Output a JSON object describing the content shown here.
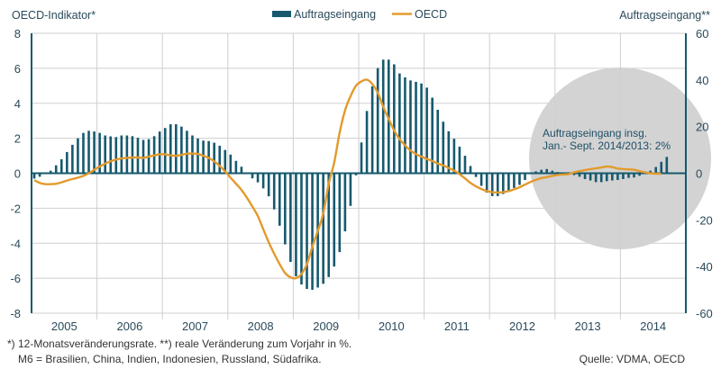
{
  "chart_data": {
    "type": "bar+line",
    "left_axis_title": "OECD-Indikator*",
    "right_axis_title": "Auftragseingang**",
    "left_ylim": [
      -8,
      8
    ],
    "left_ticks": [
      "8",
      "6",
      "4",
      "2",
      "0",
      "-2",
      "-4",
      "-6",
      "-8"
    ],
    "right_ylim": [
      -60,
      60
    ],
    "right_ticks": [
      "60",
      "40",
      "20",
      "0",
      "-20",
      "-40",
      "-60"
    ],
    "x_ticks": [
      "2005",
      "2006",
      "2007",
      "2008",
      "2009",
      "2010",
      "2011",
      "2012",
      "2013",
      "2014"
    ],
    "frequency": "monthly",
    "grid": true,
    "legend_position": "top-center",
    "colors": {
      "bars": "#16596e",
      "line": "#e39a2c",
      "axis": "#16596e",
      "highlight_circle": "#d3d3d3"
    },
    "series": [
      {
        "name": "Auftragseingang",
        "type": "bar",
        "axis": "right",
        "values": [
          -2.3,
          -1.5,
          0.4,
          1.1,
          3.4,
          6.0,
          9.1,
          12.2,
          15.0,
          17.3,
          18.2,
          17.9,
          17.3,
          16.2,
          15.8,
          15.5,
          16.2,
          16.2,
          15.9,
          15.2,
          14.3,
          14.6,
          15.9,
          17.9,
          19.4,
          21.0,
          21.0,
          20.0,
          18.2,
          16.2,
          14.9,
          14.0,
          13.8,
          13.1,
          11.8,
          10.0,
          8.0,
          5.3,
          2.8,
          0.0,
          -2.2,
          -3.9,
          -6.5,
          -9.9,
          -15.5,
          -22.5,
          -30.5,
          -38.0,
          -44.2,
          -47.7,
          -49.6,
          -50.0,
          -49.0,
          -47.4,
          -44.5,
          -40.0,
          -33.8,
          -24.9,
          -14.0,
          -0.9,
          13.2,
          26.7,
          37.3,
          45.1,
          48.7,
          48.7,
          46.7,
          42.8,
          41.1,
          39.8,
          39.2,
          38.5,
          36.7,
          32.4,
          27.2,
          22.1,
          18.0,
          14.8,
          11.4,
          7.5,
          3.1,
          -1.6,
          -5.4,
          -8.3,
          -9.8,
          -9.8,
          -8.9,
          -7.6,
          -6.3,
          -5.0,
          -2.9,
          -0.4,
          0.8,
          1.5,
          1.8,
          1.1,
          0.5,
          0.2,
          -0.5,
          -0.8,
          -1.5,
          -2.5,
          -3.1,
          -3.8,
          -3.8,
          -3.4,
          -3.1,
          -2.9,
          -2.5,
          -2.0,
          -1.8,
          -1.1,
          -0.4,
          1.1,
          2.7,
          4.9,
          7.0
        ]
      },
      {
        "name": "OECD",
        "type": "line",
        "axis": "left",
        "values": [
          -0.4,
          -0.55,
          -0.62,
          -0.62,
          -0.6,
          -0.52,
          -0.42,
          -0.33,
          -0.25,
          -0.15,
          0.0,
          0.2,
          0.38,
          0.55,
          0.68,
          0.78,
          0.85,
          0.88,
          0.9,
          0.9,
          0.88,
          0.95,
          1.02,
          1.08,
          1.08,
          1.02,
          1.0,
          1.05,
          1.12,
          1.12,
          1.1,
          1.0,
          0.88,
          0.68,
          0.42,
          0.1,
          -0.25,
          -0.6,
          -0.95,
          -1.4,
          -1.9,
          -2.45,
          -3.2,
          -3.95,
          -4.6,
          -5.2,
          -5.7,
          -5.95,
          -6.0,
          -5.75,
          -5.2,
          -4.2,
          -3.3,
          -2.3,
          -0.6,
          0.6,
          2.3,
          3.6,
          4.4,
          5.0,
          5.25,
          5.35,
          5.1,
          4.6,
          3.8,
          3.1,
          2.45,
          1.95,
          1.6,
          1.3,
          1.1,
          0.95,
          0.82,
          0.7,
          0.55,
          0.45,
          0.3,
          0.15,
          -0.05,
          -0.3,
          -0.55,
          -0.75,
          -0.9,
          -1.02,
          -1.08,
          -1.1,
          -1.08,
          -1.02,
          -0.92,
          -0.8,
          -0.65,
          -0.5,
          -0.38,
          -0.28,
          -0.22,
          -0.15,
          -0.1,
          -0.07,
          -0.05,
          0.05,
          0.12,
          0.18,
          0.24,
          0.28,
          0.33,
          0.38,
          0.35,
          0.27,
          0.24,
          0.22,
          0.2,
          0.12,
          0.05,
          0.0,
          -0.02,
          -0.03
        ]
      }
    ],
    "annotation": {
      "line1": "Auftragseingang insg.",
      "line2": "Jan.- Sept. 2014/2013: 2%"
    }
  },
  "legend": {
    "bars_label": "Auftragseingang",
    "line_label": "OECD"
  },
  "footnotes": {
    "line1": "*) 12-Monatsveränderungsrate. **) reale Veränderung zum Vorjahr in %.",
    "line2": "M6 = Brasilien, China, Indien, Indonesien, Russland, Südafrika.",
    "source": "Quelle: VDMA, OECD"
  }
}
